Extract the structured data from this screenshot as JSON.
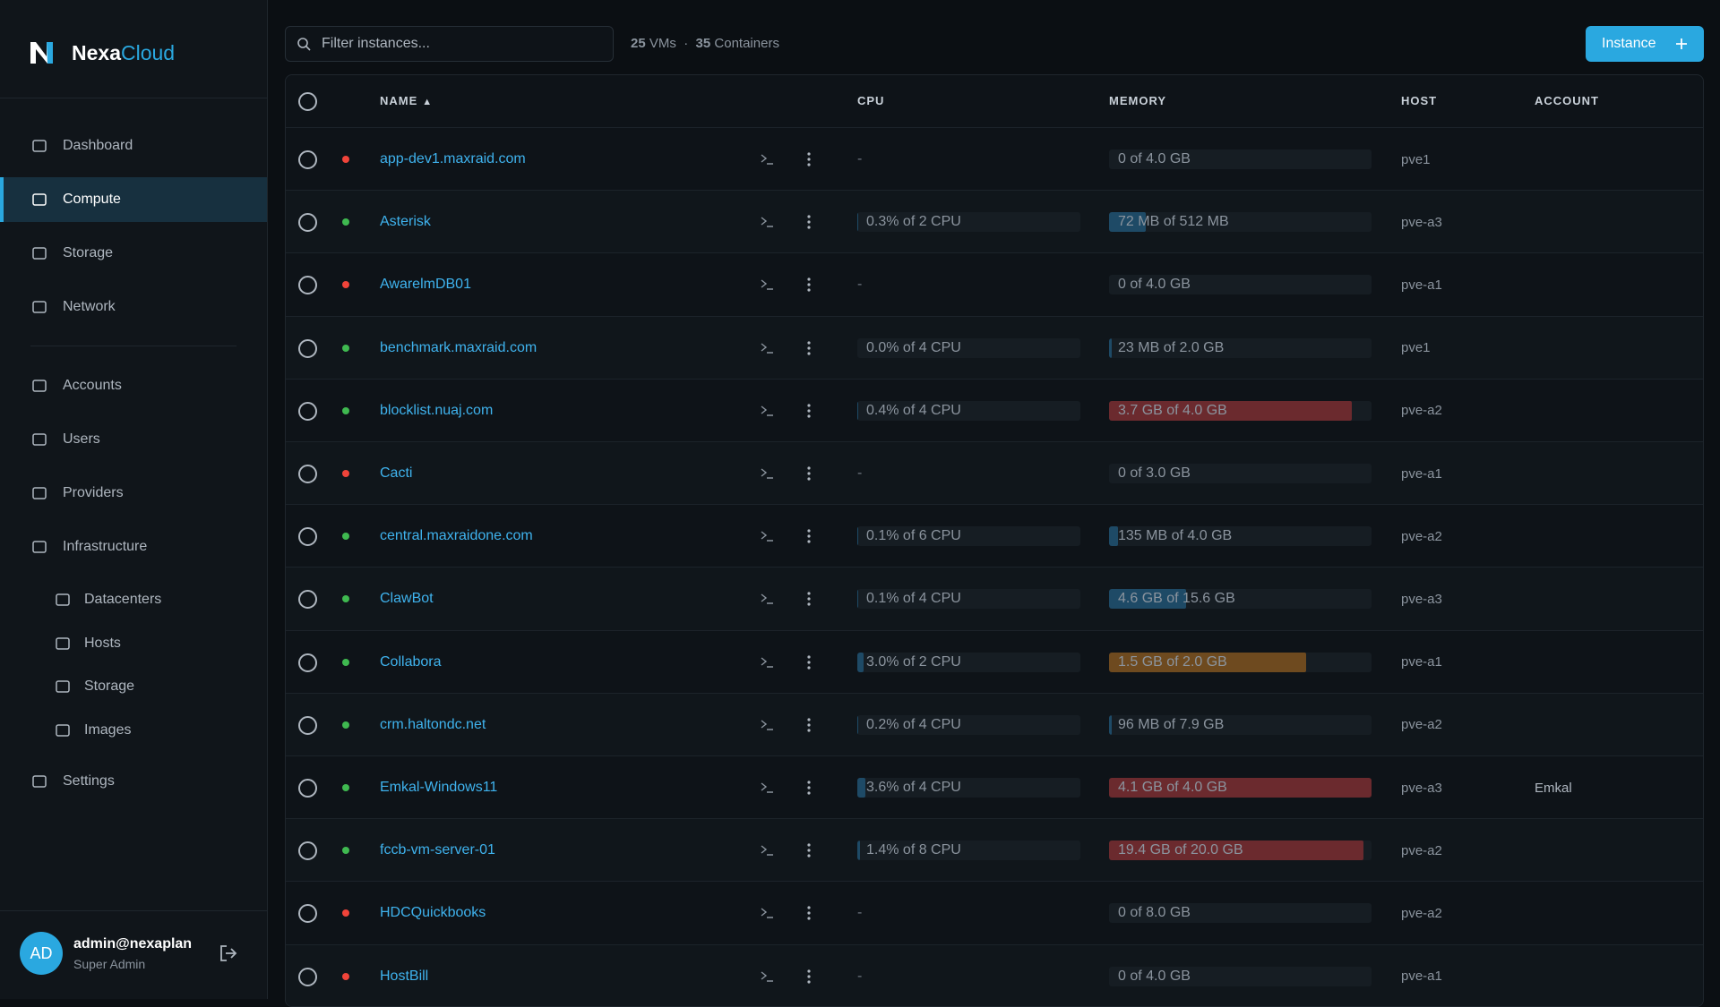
{
  "brand": {
    "name": "Nexa",
    "accent": "Cloud"
  },
  "nav": {
    "main": [
      "Dashboard",
      "Compute",
      "Storage",
      "Network"
    ],
    "admin": [
      "Accounts",
      "Users",
      "Providers",
      "Infrastructure"
    ],
    "infrastructure": [
      "Datacenters",
      "Hosts",
      "Storage",
      "Images"
    ],
    "settings": "Settings",
    "active": 1
  },
  "user": {
    "initials": "AD",
    "email": "admin@nexaplan",
    "role": "Super Admin"
  },
  "toolbar": {
    "search_placeholder": "Filter instances...",
    "vm_count": 25,
    "vm_label": "VMs",
    "separator": "·",
    "container_count": 35,
    "container_label": "Containers",
    "button": "Instance"
  },
  "table": {
    "columns": [
      "NAME",
      "CPU",
      "MEMORY",
      "HOST",
      "ACCOUNT"
    ],
    "sort_indicator": "▲",
    "rows": [
      {
        "name": "app-dev1.maxraid.com",
        "status": "stopped",
        "cpu": "-",
        "memory": "0 of 4.0 GB",
        "host": "pve1",
        "account": ""
      },
      {
        "name": "Asterisk",
        "status": "running",
        "cpu": "0.3% of 2 CPU",
        "memory": "72 MB of 512 MB",
        "host": "pve-a3",
        "account": ""
      },
      {
        "name": "AwarelmDB01",
        "status": "stopped",
        "cpu": "-",
        "memory": "0 of 4.0 GB",
        "host": "pve-a1",
        "account": ""
      },
      {
        "name": "benchmark.maxraid.com",
        "status": "running",
        "cpu": "0.0% of 4 CPU",
        "memory": "23 MB of 2.0 GB",
        "host": "pve1",
        "account": ""
      },
      {
        "name": "blocklist.nuaj.com",
        "status": "running",
        "cpu": "0.4% of 4 CPU",
        "memory": "3.7 GB of 4.0 GB",
        "host": "pve-a2",
        "account": ""
      },
      {
        "name": "Cacti",
        "status": "stopped",
        "cpu": "-",
        "memory": "0 of 3.0 GB",
        "host": "pve-a1",
        "account": ""
      },
      {
        "name": "central.maxraidone.com",
        "status": "running",
        "cpu": "0.1% of 6 CPU",
        "memory": "135 MB of 4.0 GB",
        "host": "pve-a2",
        "account": ""
      },
      {
        "name": "ClawBot",
        "status": "running",
        "cpu": "0.1% of 4 CPU",
        "memory": "4.6 GB of 15.6 GB",
        "host": "pve-a3",
        "account": ""
      },
      {
        "name": "Collabora",
        "status": "running",
        "cpu": "3.0% of 2 CPU",
        "memory": "1.5 GB of 2.0 GB",
        "host": "pve-a1",
        "account": ""
      },
      {
        "name": "crm.haltondc.net",
        "status": "running",
        "cpu": "0.2% of 4 CPU",
        "memory": "96 MB of 7.9 GB",
        "host": "pve-a2",
        "account": ""
      },
      {
        "name": "Emkal-Windows11",
        "status": "running",
        "cpu": "3.6% of 4 CPU",
        "memory": "4.1 GB of 4.0 GB",
        "host": "pve-a3",
        "account": "Emkal"
      },
      {
        "name": "fccb-vm-server-01",
        "status": "running",
        "cpu": "1.4% of 8 CPU",
        "memory": "19.4 GB of 20.0 GB",
        "host": "pve-a2",
        "account": ""
      },
      {
        "name": "HDCQuickbooks",
        "status": "stopped",
        "cpu": "-",
        "memory": "0 of 8.0 GB",
        "host": "pve-a2",
        "account": ""
      },
      {
        "name": "HostBill",
        "status": "stopped",
        "cpu": "-",
        "memory": "0 of 4.0 GB",
        "host": "pve-a1",
        "account": ""
      }
    ]
  }
}
